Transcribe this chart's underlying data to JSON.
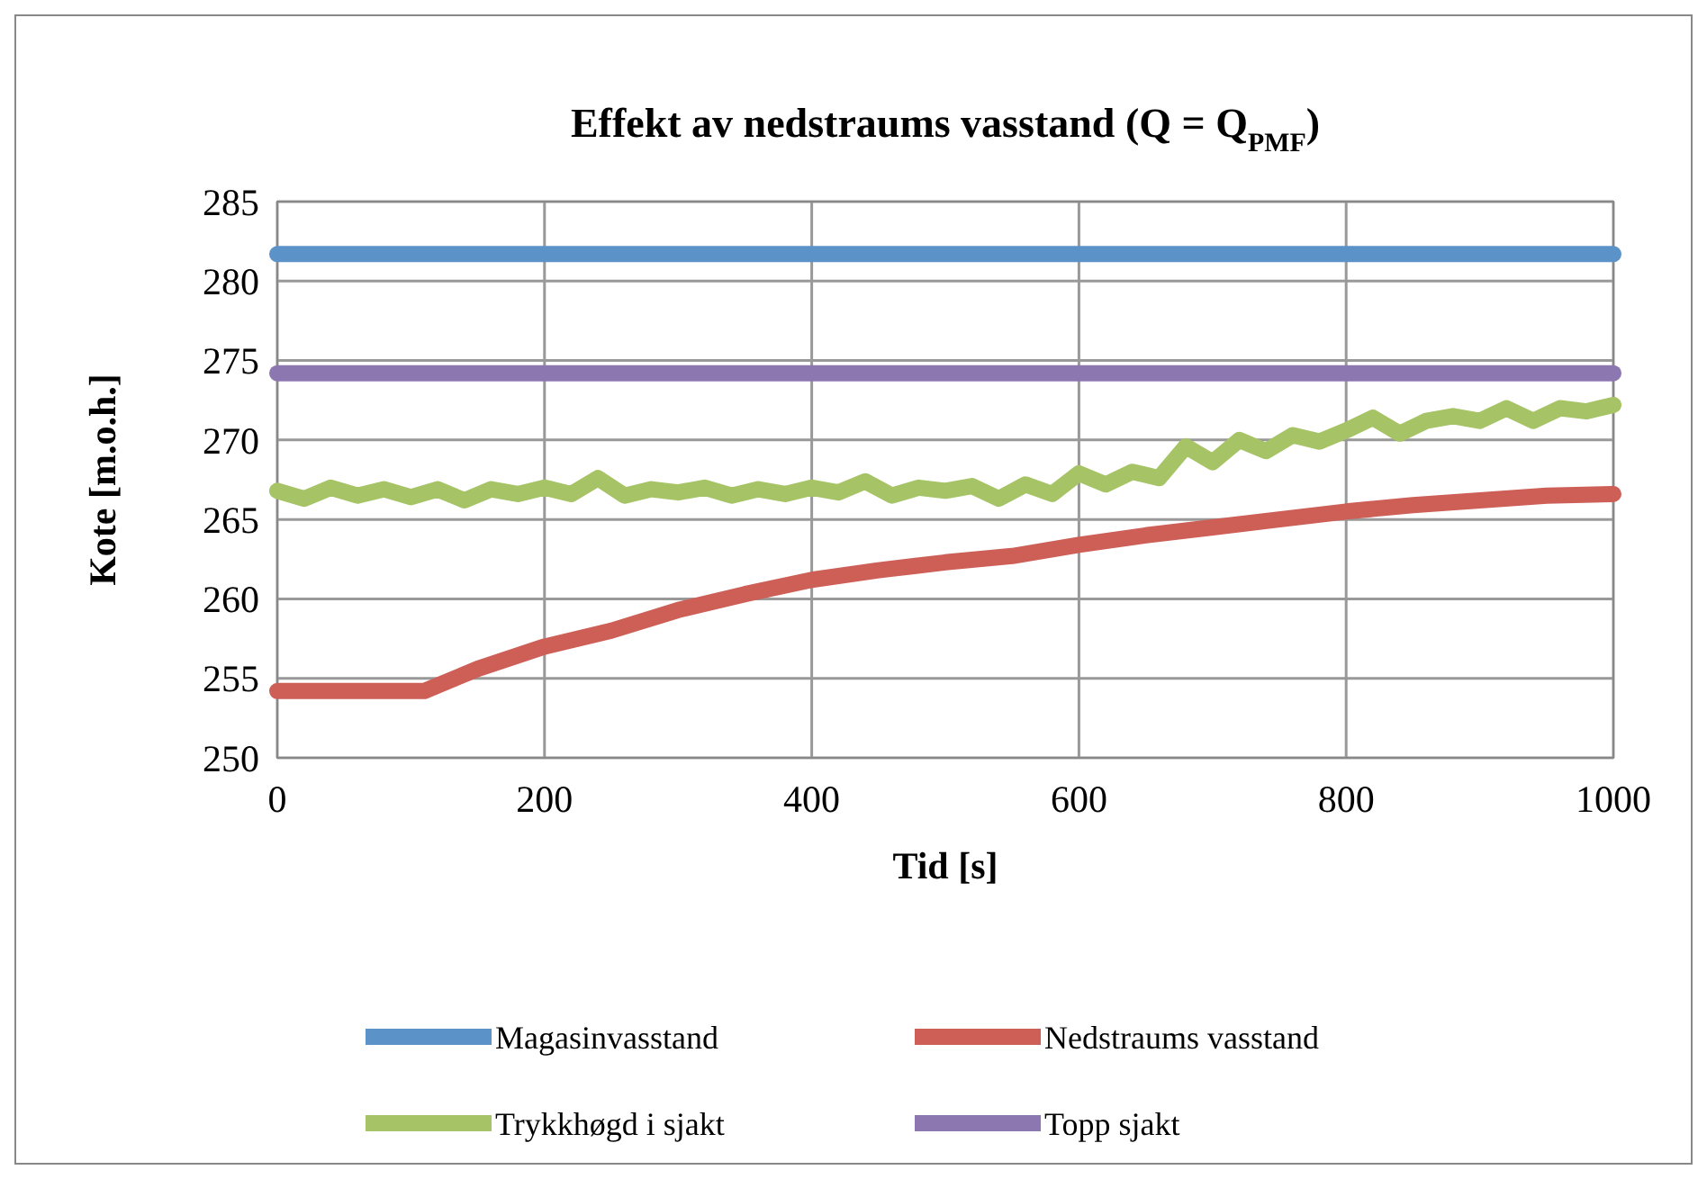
{
  "chart_data": {
    "type": "line",
    "title": "Effekt av nedstraums vasstand (Q = Q$_{PMF}$)",
    "xlabel": "Tid [s]",
    "ylabel": "Kote [m.o.h.]",
    "xlim": [
      0,
      1000
    ],
    "xticks": [
      0,
      200,
      400,
      600,
      800,
      1000
    ],
    "ylim": [
      250,
      285
    ],
    "yticks": [
      250,
      255,
      260,
      265,
      270,
      275,
      280,
      285
    ],
    "grid": true,
    "legend": "bottom",
    "marker": "none",
    "line_style": "solid",
    "series": [
      {
        "name": "Magasinvasstand",
        "color": "#5b93c9",
        "x": [
          0,
          1000
        ],
        "values": [
          281.7,
          281.7
        ]
      },
      {
        "name": "Nedstraums vasstand",
        "color": "#cd5f57",
        "x": [
          0,
          110,
          150,
          200,
          250,
          300,
          350,
          400,
          450,
          500,
          550,
          600,
          650,
          700,
          750,
          800,
          850,
          900,
          950,
          1000
        ],
        "values": [
          254.2,
          254.2,
          255.6,
          257.0,
          258.0,
          259.3,
          260.3,
          261.2,
          261.8,
          262.3,
          262.7,
          263.4,
          264.0,
          264.5,
          265.0,
          265.5,
          265.9,
          266.2,
          266.5,
          266.6
        ]
      },
      {
        "name": "Trykkhøgd i sjakt",
        "color": "#a6c466",
        "x": [
          0,
          20,
          40,
          60,
          80,
          100,
          120,
          140,
          160,
          180,
          200,
          220,
          240,
          260,
          280,
          300,
          320,
          340,
          360,
          380,
          400,
          420,
          440,
          460,
          480,
          500,
          520,
          540,
          560,
          580,
          600,
          620,
          640,
          660,
          680,
          700,
          720,
          740,
          760,
          780,
          800,
          820,
          840,
          860,
          880,
          900,
          920,
          940,
          960,
          980,
          1000
        ],
        "values": [
          266.8,
          266.3,
          267.0,
          266.5,
          266.9,
          266.4,
          266.9,
          266.2,
          266.9,
          266.6,
          267.0,
          266.6,
          267.6,
          266.5,
          266.9,
          266.7,
          267.0,
          266.5,
          266.9,
          266.6,
          267.0,
          266.7,
          267.4,
          266.5,
          267.0,
          266.8,
          267.1,
          266.3,
          267.2,
          266.6,
          267.9,
          267.2,
          268.0,
          267.6,
          269.6,
          268.6,
          270.0,
          269.3,
          270.3,
          269.9,
          270.6,
          271.4,
          270.4,
          271.2,
          271.5,
          271.2,
          272.0,
          271.2,
          272.0,
          271.8,
          272.2
        ]
      },
      {
        "name": "Topp sjakt",
        "color": "#8c77b0",
        "x": [
          0,
          1000
        ],
        "values": [
          274.2,
          274.2
        ]
      }
    ]
  }
}
